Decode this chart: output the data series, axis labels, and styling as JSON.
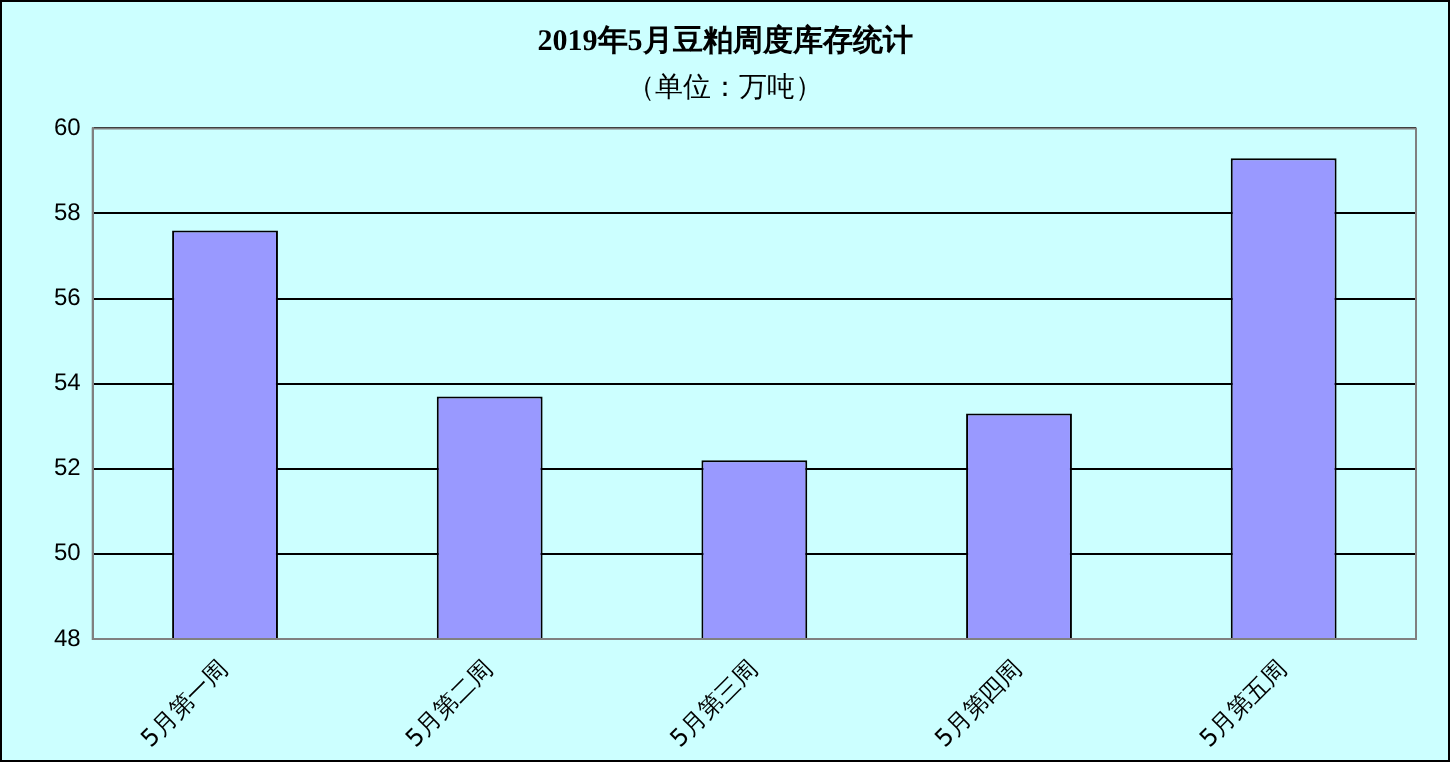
{
  "chart_data": {
    "type": "bar",
    "title": "2019年5月豆粕周度库存统计",
    "subtitle": "（单位：万吨）",
    "categories": [
      "5月第一周",
      "5月第二周",
      "5月第三周",
      "5月第四周",
      "5月第五周"
    ],
    "values": [
      57.6,
      53.7,
      52.2,
      53.3,
      59.3
    ],
    "color": "#9999ff",
    "ylim": [
      48,
      60
    ],
    "yticks": [
      48,
      50,
      52,
      54,
      56,
      58,
      60
    ],
    "grid": "y",
    "legend": false
  }
}
